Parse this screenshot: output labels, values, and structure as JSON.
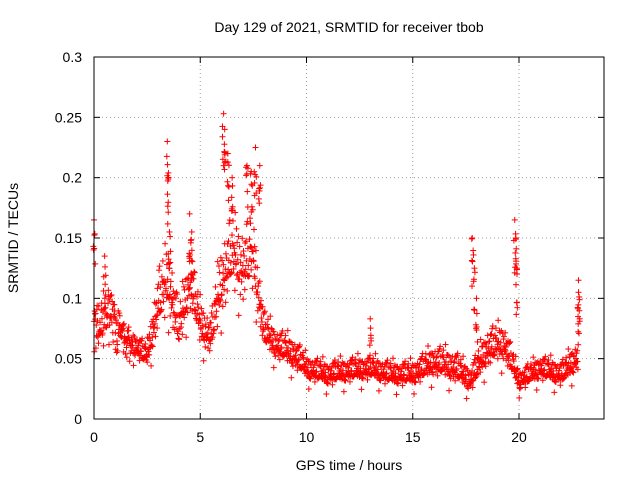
{
  "chart_data": {
    "type": "scatter",
    "title": "Day 129 of 2021, SRMTID for receiver tbob",
    "xlabel": "GPS time / hours",
    "ylabel": "SRMTID / TECUs",
    "xlim": [
      0,
      24
    ],
    "ylim": [
      0,
      0.3
    ],
    "x_ticks": [
      0,
      5,
      10,
      15,
      20
    ],
    "x_tick_labels": [
      "0",
      "5",
      "10",
      "15",
      "20"
    ],
    "y_ticks": [
      0,
      0.05,
      0.1,
      0.15,
      0.2,
      0.25,
      0.3
    ],
    "y_tick_labels": [
      "0",
      "0.05",
      "0.1",
      "0.15",
      "0.2",
      "0.25",
      "0.3"
    ],
    "grid": true,
    "marker": "+",
    "series": [
      {
        "name": "SRMTID",
        "color": "#ff0000",
        "profile": [
          {
            "x": 0.0,
            "level": 0.07,
            "spread": 0.03
          },
          {
            "x": 0.5,
            "level": 0.09,
            "spread": 0.035
          },
          {
            "x": 1.0,
            "level": 0.08,
            "spread": 0.03
          },
          {
            "x": 1.5,
            "level": 0.065,
            "spread": 0.02
          },
          {
            "x": 2.0,
            "level": 0.058,
            "spread": 0.015
          },
          {
            "x": 2.5,
            "level": 0.05,
            "spread": 0.015
          },
          {
            "x": 3.0,
            "level": 0.09,
            "spread": 0.04
          },
          {
            "x": 3.5,
            "level": 0.11,
            "spread": 0.05
          },
          {
            "x": 4.0,
            "level": 0.07,
            "spread": 0.03
          },
          {
            "x": 4.5,
            "level": 0.11,
            "spread": 0.04
          },
          {
            "x": 5.0,
            "level": 0.075,
            "spread": 0.03
          },
          {
            "x": 5.5,
            "level": 0.065,
            "spread": 0.025
          },
          {
            "x": 6.0,
            "level": 0.11,
            "spread": 0.05
          },
          {
            "x": 6.5,
            "level": 0.13,
            "spread": 0.05
          },
          {
            "x": 7.0,
            "level": 0.12,
            "spread": 0.05
          },
          {
            "x": 7.5,
            "level": 0.13,
            "spread": 0.05
          },
          {
            "x": 8.0,
            "level": 0.07,
            "spread": 0.025
          },
          {
            "x": 8.5,
            "level": 0.06,
            "spread": 0.02
          },
          {
            "x": 9.0,
            "level": 0.055,
            "spread": 0.02
          },
          {
            "x": 9.5,
            "level": 0.05,
            "spread": 0.02
          },
          {
            "x": 10.0,
            "level": 0.04,
            "spread": 0.015
          },
          {
            "x": 11.0,
            "level": 0.035,
            "spread": 0.015
          },
          {
            "x": 12.0,
            "level": 0.038,
            "spread": 0.015
          },
          {
            "x": 13.0,
            "level": 0.04,
            "spread": 0.015
          },
          {
            "x": 14.0,
            "level": 0.035,
            "spread": 0.015
          },
          {
            "x": 15.0,
            "level": 0.035,
            "spread": 0.015
          },
          {
            "x": 16.0,
            "level": 0.045,
            "spread": 0.02
          },
          {
            "x": 17.0,
            "level": 0.04,
            "spread": 0.02
          },
          {
            "x": 17.7,
            "level": 0.03,
            "spread": 0.015
          },
          {
            "x": 18.5,
            "level": 0.055,
            "spread": 0.025
          },
          {
            "x": 19.3,
            "level": 0.06,
            "spread": 0.025
          },
          {
            "x": 20.0,
            "level": 0.03,
            "spread": 0.012
          },
          {
            "x": 21.0,
            "level": 0.04,
            "spread": 0.015
          },
          {
            "x": 22.0,
            "level": 0.035,
            "spread": 0.015
          },
          {
            "x": 22.8,
            "level": 0.05,
            "spread": 0.02
          }
        ],
        "peaks": [
          {
            "x": 0.0,
            "y": 0.165
          },
          {
            "x": 0.5,
            "y": 0.135
          },
          {
            "x": 3.45,
            "y": 0.23
          },
          {
            "x": 3.5,
            "y": 0.2
          },
          {
            "x": 3.55,
            "y": 0.155
          },
          {
            "x": 4.5,
            "y": 0.17
          },
          {
            "x": 4.6,
            "y": 0.155
          },
          {
            "x": 6.1,
            "y": 0.253
          },
          {
            "x": 6.15,
            "y": 0.24
          },
          {
            "x": 6.3,
            "y": 0.22
          },
          {
            "x": 6.5,
            "y": 0.2
          },
          {
            "x": 7.2,
            "y": 0.21
          },
          {
            "x": 7.4,
            "y": 0.205
          },
          {
            "x": 7.6,
            "y": 0.225
          },
          {
            "x": 7.8,
            "y": 0.21
          },
          {
            "x": 13.0,
            "y": 0.083
          },
          {
            "x": 17.8,
            "y": 0.15
          },
          {
            "x": 17.9,
            "y": 0.125
          },
          {
            "x": 18.0,
            "y": 0.1
          },
          {
            "x": 19.8,
            "y": 0.165
          },
          {
            "x": 19.85,
            "y": 0.15
          },
          {
            "x": 19.9,
            "y": 0.125
          },
          {
            "x": 22.8,
            "y": 0.115
          },
          {
            "x": 22.8,
            "y": 0.105
          }
        ]
      }
    ]
  }
}
